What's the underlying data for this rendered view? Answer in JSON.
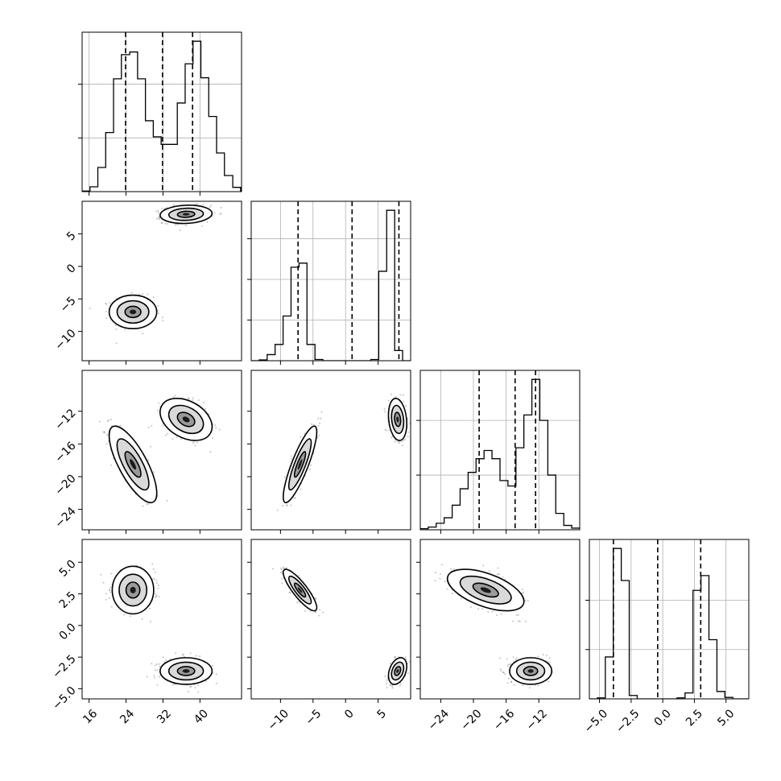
{
  "chart_data": {
    "type": "corner",
    "n_params": 4,
    "axes": [
      {
        "range": [
          14.5,
          49.0
        ],
        "ticks": [
          16,
          24,
          32,
          40
        ],
        "tick_labels": [
          "16",
          "24",
          "32",
          "40"
        ],
        "quantiles": [
          23.9,
          31.9,
          38.4
        ],
        "histogram_edges": [
          14.5,
          16.2,
          17.9,
          19.6,
          21.3,
          23.0,
          24.8,
          26.5,
          28.2,
          29.9,
          31.6,
          33.3,
          35.1,
          36.8,
          38.5,
          40.2,
          41.9,
          43.6,
          45.3,
          47.1,
          48.8
        ],
        "histogram_counts": [
          0.1,
          0.9,
          4.5,
          11,
          21,
          25.5,
          26.0,
          21.0,
          13.2,
          10.2,
          8.8,
          8.8,
          16.5,
          23.8,
          28.0,
          21.2,
          14.0,
          7.2,
          3.0,
          0.8
        ]
      },
      {
        "range": [
          -14.5,
          10.0
        ],
        "ticks": [
          -10,
          -5,
          0,
          5
        ],
        "tick_labels": [
          "−10",
          "−5",
          "0",
          "5"
        ],
        "quantiles": [
          -7.3,
          1.0,
          8.2
        ],
        "histogram_edges": [
          -14.5,
          -13.28,
          -12.05,
          -10.83,
          -9.6,
          -8.38,
          -7.15,
          -5.93,
          -4.7,
          -3.48,
          -2.25,
          -1.03,
          0.2,
          1.42,
          2.65,
          3.87,
          5.1,
          6.32,
          7.55,
          8.77,
          10.0
        ],
        "histogram_counts": [
          0,
          0.2,
          1.5,
          4.0,
          11.0,
          23.0,
          24.0,
          4.0,
          0.3,
          0,
          0,
          0,
          0,
          0,
          0,
          0.3,
          22.0,
          37.0,
          2.5,
          0
        ]
      },
      {
        "range": [
          -26.5,
          -7.0
        ],
        "ticks": [
          -24,
          -20,
          -16,
          -12
        ],
        "tick_labels": [
          "−24",
          "−20",
          "−16",
          "−12"
        ],
        "quantiles": [
          -19.3,
          -14.9,
          -12.4
        ],
        "histogram_edges": [
          -26.5,
          -25.53,
          -24.55,
          -23.58,
          -22.6,
          -21.63,
          -20.65,
          -19.68,
          -18.7,
          -17.73,
          -16.75,
          -15.78,
          -14.8,
          -13.83,
          -12.85,
          -11.88,
          -10.9,
          -9.93,
          -8.95,
          -7.98,
          -7.0
        ],
        "histogram_counts": [
          0.2,
          0.5,
          1.2,
          2.2,
          4.5,
          7.5,
          10.5,
          13.0,
          14.5,
          13.0,
          9.0,
          8.0,
          15.0,
          21.0,
          27.5,
          20.0,
          10.0,
          3.0,
          0.8,
          0.3
        ]
      },
      {
        "range": [
          -5.8,
          6.8
        ],
        "ticks": [
          -5.0,
          -2.5,
          0.0,
          2.5,
          5.0
        ],
        "tick_labels": [
          "−5.0",
          "−2.5",
          "0.0",
          "2.5",
          "5.0"
        ],
        "quantiles": [
          -3.9,
          -0.4,
          3.0
        ],
        "histogram_edges": [
          -5.8,
          -5.17,
          -4.54,
          -3.91,
          -3.28,
          -2.65,
          -2.02,
          -1.39,
          -0.76,
          -0.13,
          0.5,
          1.13,
          1.76,
          2.39,
          3.02,
          3.65,
          4.28,
          4.91,
          5.54,
          6.17,
          6.8
        ],
        "histogram_counts": [
          0,
          0.2,
          8.5,
          30.5,
          24.0,
          0.7,
          0,
          0,
          0,
          0,
          0,
          0.2,
          1.2,
          22.0,
          25.0,
          12.0,
          1.5,
          0.3,
          0,
          0
        ]
      }
    ],
    "histogram_y_ticks_per_panel": [
      [
        10,
        20
      ],
      [
        10,
        20,
        30
      ],
      [
        10,
        20
      ],
      [
        10,
        20
      ]
    ],
    "modes": [
      {
        "means": [
          25.5,
          -7.0,
          -18.5,
          2.8
        ],
        "stds": [
          2.2,
          1.1,
          2.0,
          0.7
        ],
        "correlation": [
          [
            1.0,
            0.0,
            -0.75,
            0.0
          ],
          [
            0.0,
            1.0,
            0.85,
            -0.85
          ],
          [
            -0.75,
            0.85,
            1.0,
            -0.55
          ],
          [
            0.0,
            -0.85,
            -0.55,
            1.0
          ]
        ]
      },
      {
        "means": [
          37.0,
          8.0,
          -13.0,
          -3.6
        ],
        "stds": [
          2.4,
          0.6,
          1.1,
          0.45
        ],
        "correlation": [
          [
            1.0,
            0.1,
            -0.35,
            0.0
          ],
          [
            0.1,
            1.0,
            -0.2,
            0.35
          ],
          [
            -0.35,
            -0.2,
            1.0,
            0.0
          ],
          [
            0.0,
            0.35,
            0.0,
            1.0
          ]
        ]
      }
    ],
    "contour_levels_sigma": [
      1,
      2,
      3
    ],
    "colors": {
      "frame": "#000000",
      "grid": "#b0b0b0",
      "contour_line": "#000000",
      "density_dark": "#1a1a1a",
      "density_light": "#ffffff"
    }
  }
}
